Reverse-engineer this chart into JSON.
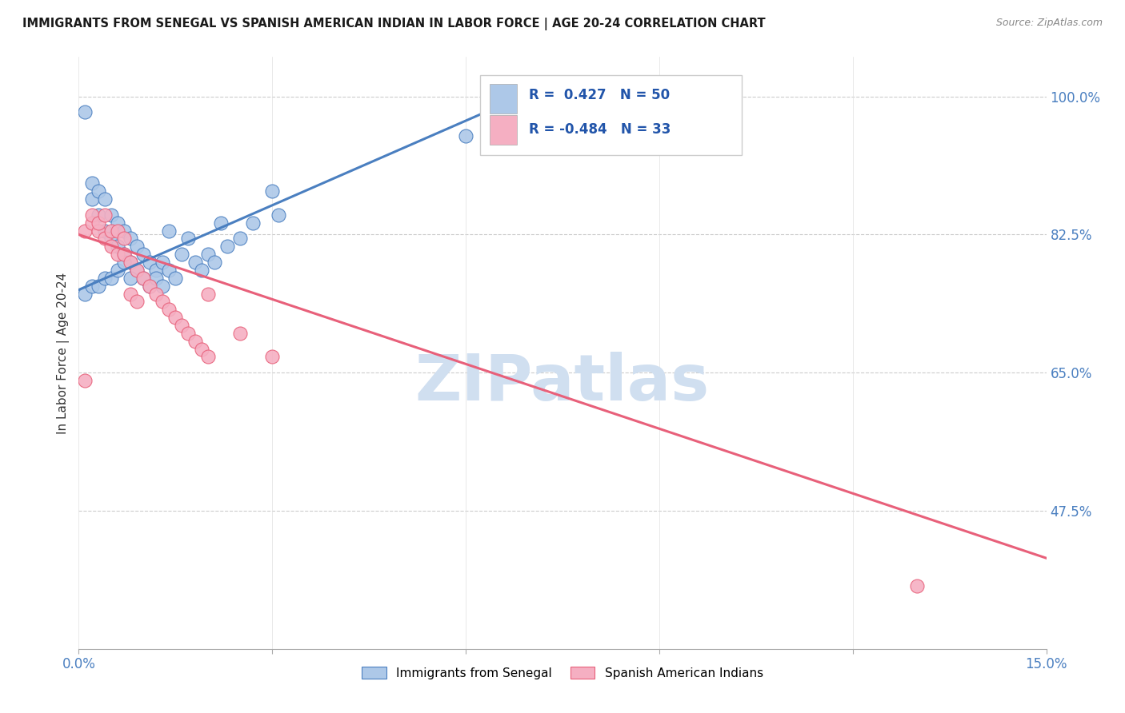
{
  "title": "IMMIGRANTS FROM SENEGAL VS SPANISH AMERICAN INDIAN IN LABOR FORCE | AGE 20-24 CORRELATION CHART",
  "source": "Source: ZipAtlas.com",
  "ylabel": "In Labor Force | Age 20-24",
  "xlim": [
    0.0,
    0.15
  ],
  "ylim": [
    0.3,
    1.05
  ],
  "xticks": [
    0.0,
    0.03,
    0.06,
    0.09,
    0.12,
    0.15
  ],
  "xticklabels": [
    "0.0%",
    "",
    "",
    "",
    "",
    "15.0%"
  ],
  "yticks": [
    0.475,
    0.65,
    0.825,
    1.0
  ],
  "yticklabels": [
    "47.5%",
    "65.0%",
    "82.5%",
    "100.0%"
  ],
  "senegal_R": 0.427,
  "senegal_N": 50,
  "spanish_R": -0.484,
  "spanish_N": 33,
  "senegal_color": "#adc8e8",
  "spanish_color": "#f5afc2",
  "line_senegal_color": "#4a7fc0",
  "line_spanish_color": "#e8607a",
  "watermark": "ZIPatlas",
  "watermark_color": "#d0dff0",
  "legend_label_senegal": "Immigrants from Senegal",
  "legend_label_spanish": "Spanish American Indians",
  "senegal_x": [
    0.001,
    0.002,
    0.002,
    0.003,
    0.003,
    0.004,
    0.004,
    0.005,
    0.005,
    0.006,
    0.006,
    0.007,
    0.007,
    0.008,
    0.008,
    0.009,
    0.009,
    0.01,
    0.01,
    0.011,
    0.011,
    0.012,
    0.012,
    0.013,
    0.013,
    0.014,
    0.014,
    0.015,
    0.016,
    0.017,
    0.018,
    0.019,
    0.02,
    0.021,
    0.022,
    0.023,
    0.025,
    0.027,
    0.03,
    0.031,
    0.001,
    0.002,
    0.003,
    0.004,
    0.005,
    0.006,
    0.007,
    0.008,
    0.06,
    0.07
  ],
  "senegal_y": [
    0.98,
    0.89,
    0.87,
    0.88,
    0.85,
    0.87,
    0.83,
    0.85,
    0.82,
    0.84,
    0.81,
    0.83,
    0.8,
    0.82,
    0.79,
    0.81,
    0.78,
    0.8,
    0.77,
    0.79,
    0.76,
    0.78,
    0.77,
    0.79,
    0.76,
    0.78,
    0.83,
    0.77,
    0.8,
    0.82,
    0.79,
    0.78,
    0.8,
    0.79,
    0.84,
    0.81,
    0.82,
    0.84,
    0.88,
    0.85,
    0.75,
    0.76,
    0.76,
    0.77,
    0.77,
    0.78,
    0.79,
    0.77,
    0.95,
    0.97
  ],
  "spanish_x": [
    0.001,
    0.002,
    0.003,
    0.004,
    0.005,
    0.006,
    0.007,
    0.008,
    0.009,
    0.01,
    0.011,
    0.012,
    0.013,
    0.014,
    0.015,
    0.016,
    0.017,
    0.018,
    0.019,
    0.02,
    0.002,
    0.003,
    0.004,
    0.005,
    0.006,
    0.007,
    0.008,
    0.009,
    0.02,
    0.025,
    0.03,
    0.13,
    0.001
  ],
  "spanish_y": [
    0.83,
    0.84,
    0.83,
    0.82,
    0.81,
    0.8,
    0.8,
    0.79,
    0.78,
    0.77,
    0.76,
    0.75,
    0.74,
    0.73,
    0.72,
    0.71,
    0.7,
    0.69,
    0.68,
    0.67,
    0.85,
    0.84,
    0.85,
    0.83,
    0.83,
    0.82,
    0.75,
    0.74,
    0.75,
    0.7,
    0.67,
    0.38,
    0.64
  ],
  "blue_line_x0": 0.0,
  "blue_line_y0": 0.755,
  "blue_line_x1": 0.07,
  "blue_line_y1": 1.005,
  "pink_line_x0": 0.0,
  "pink_line_y0": 0.825,
  "pink_line_x1": 0.15,
  "pink_line_y1": 0.415
}
